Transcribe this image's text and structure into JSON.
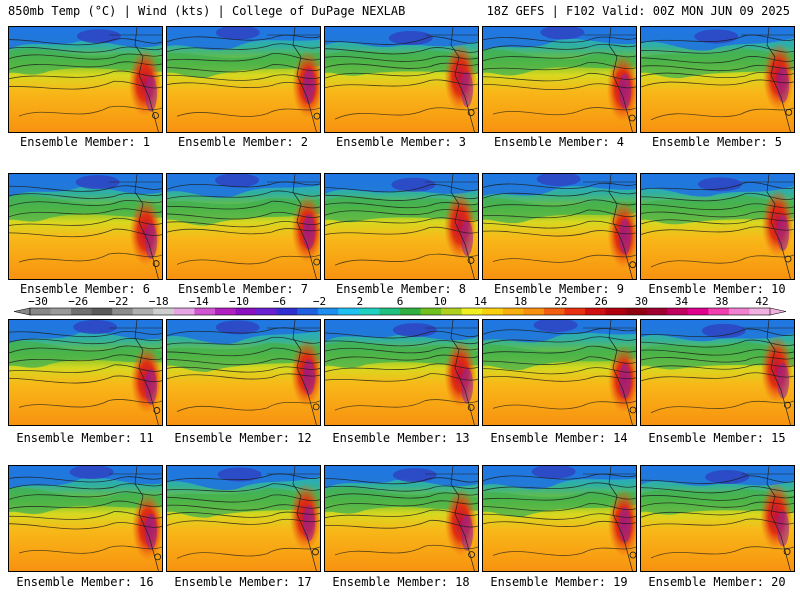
{
  "header": {
    "left_title": "850mb Temp (°C) | Wind (kts) | College of DuPage NEXLAB",
    "right_title": "18Z GEFS | F102 Valid: 00Z MON JUN 09 2025"
  },
  "members": [
    "Ensemble Member: 1",
    "Ensemble Member: 2",
    "Ensemble Member: 3",
    "Ensemble Member: 4",
    "Ensemble Member: 5",
    "Ensemble Member: 6",
    "Ensemble Member: 7",
    "Ensemble Member: 8",
    "Ensemble Member: 9",
    "Ensemble Member: 10",
    "Ensemble Member: 11",
    "Ensemble Member: 12",
    "Ensemble Member: 13",
    "Ensemble Member: 14",
    "Ensemble Member: 15",
    "Ensemble Member: 16",
    "Ensemble Member: 17",
    "Ensemble Member: 18",
    "Ensemble Member: 19",
    "Ensemble Member: 20"
  ],
  "colorbar": {
    "tick_labels": [
      "-30",
      "-26",
      "-22",
      "-18",
      "-14",
      "-10",
      "-6",
      "-2",
      "2",
      "6",
      "10",
      "14",
      "18",
      "22",
      "26",
      "30",
      "34",
      "38",
      "42"
    ],
    "colors": [
      "#888888",
      "#9a9a9a",
      "#707070",
      "#5a5a5a",
      "#8c8c8c",
      "#b0b0b0",
      "#cfcfcf",
      "#e6a6e6",
      "#d055d0",
      "#b020c0",
      "#8a10c0",
      "#6a20d0",
      "#3030d0",
      "#2060e0",
      "#2090f0",
      "#20c0f0",
      "#20d0c0",
      "#20c080",
      "#30b040",
      "#70c020",
      "#b0d020",
      "#f0f020",
      "#f8d010",
      "#f8b010",
      "#f89010",
      "#f06010",
      "#e83010",
      "#d01010",
      "#b00010",
      "#900010",
      "#a00030",
      "#c00060",
      "#e00090",
      "#f040b0",
      "#f080d0",
      "#f0b0e0"
    ]
  }
}
